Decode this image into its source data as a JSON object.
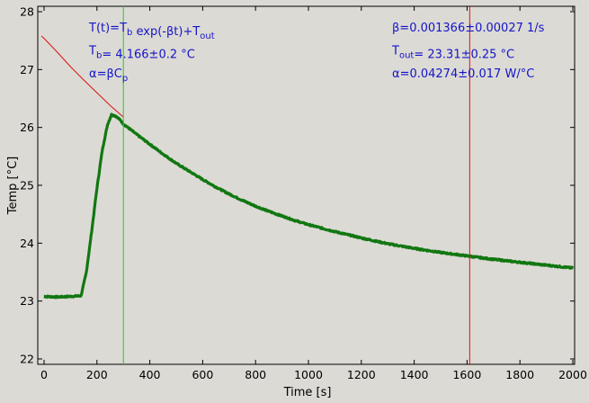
{
  "chart_data": {
    "type": "line",
    "xlabel": "Time [s]",
    "ylabel": "Temp [°C]",
    "xlim": [
      0,
      2000
    ],
    "ylim": [
      22,
      28
    ],
    "x_ticks": [
      0,
      200,
      400,
      600,
      800,
      1000,
      1200,
      1400,
      1600,
      1800,
      2000
    ],
    "y_ticks": [
      22,
      23,
      24,
      25,
      26,
      27,
      28
    ],
    "grid": false,
    "vertical_markers": [
      {
        "x": 300,
        "color": "#22cc22"
      },
      {
        "x": 1610,
        "color": "#dd1111"
      }
    ],
    "series": [
      {
        "color": "#117711",
        "style": "thick-noisy",
        "points": [
          [
            0,
            23.08
          ],
          [
            50,
            23.07
          ],
          [
            100,
            23.08
          ],
          [
            140,
            23.09
          ],
          [
            160,
            23.5
          ],
          [
            180,
            24.2
          ],
          [
            200,
            24.95
          ],
          [
            220,
            25.6
          ],
          [
            240,
            26.05
          ],
          [
            255,
            26.22
          ],
          [
            270,
            26.2
          ],
          [
            290,
            26.12
          ],
          [
            300,
            26.06
          ],
          [
            350,
            25.88
          ],
          [
            400,
            25.71
          ],
          [
            450,
            25.54
          ],
          [
            500,
            25.38
          ],
          [
            550,
            25.24
          ],
          [
            600,
            25.1
          ],
          [
            650,
            24.97
          ],
          [
            700,
            24.85
          ],
          [
            750,
            24.74
          ],
          [
            800,
            24.64
          ],
          [
            850,
            24.55
          ],
          [
            900,
            24.47
          ],
          [
            950,
            24.39
          ],
          [
            1000,
            24.32
          ],
          [
            1100,
            24.2
          ],
          [
            1200,
            24.09
          ],
          [
            1300,
            23.99
          ],
          [
            1400,
            23.91
          ],
          [
            1500,
            23.84
          ],
          [
            1600,
            23.78
          ],
          [
            1700,
            23.72
          ],
          [
            1800,
            23.67
          ],
          [
            1900,
            23.62
          ],
          [
            1960,
            23.59
          ],
          [
            2000,
            23.57
          ]
        ]
      },
      {
        "color": "#dd1111",
        "style": "thin",
        "points": [
          [
            -10,
            27.58
          ],
          [
            0,
            27.54
          ],
          [
            50,
            27.3
          ],
          [
            100,
            27.05
          ],
          [
            150,
            26.82
          ],
          [
            200,
            26.6
          ],
          [
            250,
            26.38
          ],
          [
            300,
            26.18
          ]
        ]
      }
    ],
    "annotations": {
      "left": [
        {
          "parts": [
            [
              "T(t)=T",
              ""
            ],
            [
              "b",
              "sub"
            ],
            [
              " exp(-βt)+T",
              ""
            ],
            [
              "out",
              "sub"
            ]
          ]
        },
        {
          "parts": [
            [
              "T",
              ""
            ],
            [
              "b",
              "sub"
            ],
            [
              "= 4.166±0.2 °C",
              ""
            ]
          ]
        },
        {
          "parts": [
            [
              "α=βC",
              ""
            ],
            [
              "p",
              "sub"
            ]
          ]
        }
      ],
      "right": [
        {
          "parts": [
            [
              "β=0.001366±0.00027 1/s",
              ""
            ]
          ]
        },
        {
          "parts": [
            [
              "T",
              ""
            ],
            [
              "out",
              "sub"
            ],
            [
              "= 23.31±0.25 °C",
              ""
            ]
          ]
        },
        {
          "parts": [
            [
              "α=0.04274±0.017 W/°C",
              ""
            ]
          ]
        }
      ]
    }
  }
}
